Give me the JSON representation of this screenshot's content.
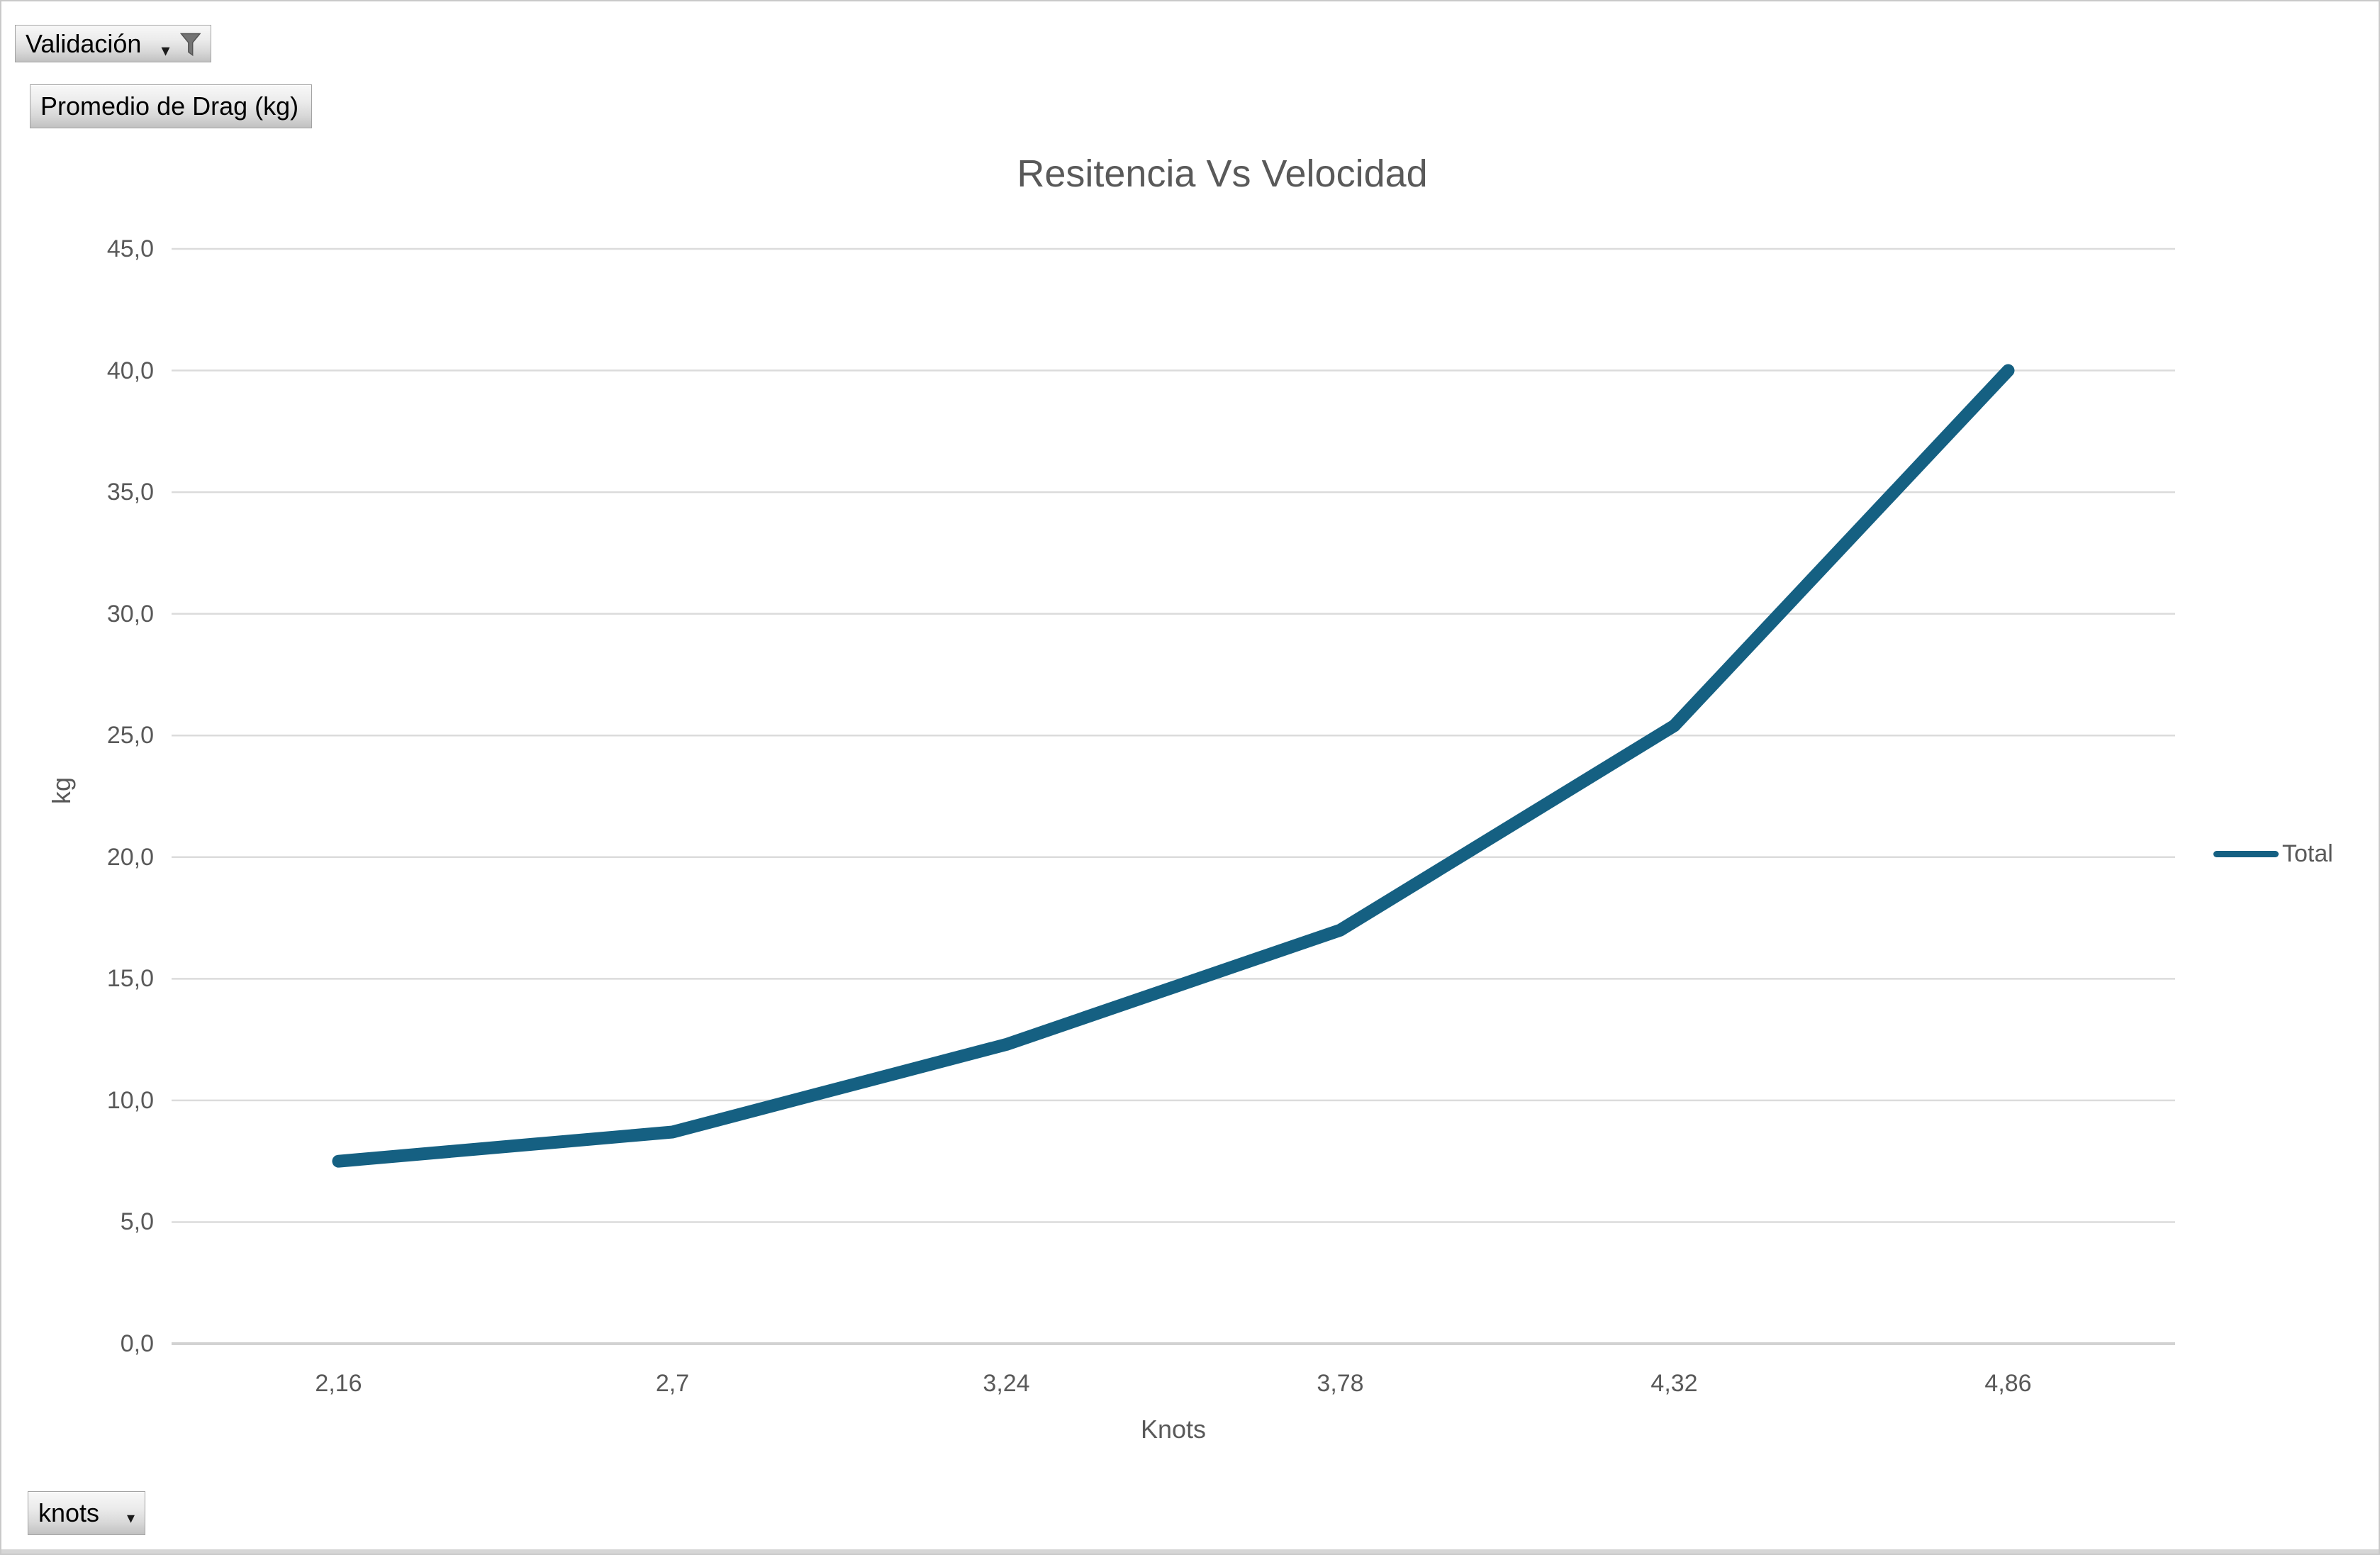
{
  "frame": {
    "background": "#FFFFFF",
    "border_color": "#C9C9C9",
    "bottom_strip_color": "#D6D6D6"
  },
  "pivot_buttons": {
    "validacion": {
      "label": "Validación",
      "dropdown_glyph": "▾",
      "icon": "filter-funnel-icon"
    },
    "promedio": {
      "label": "Promedio de Drag (kg)"
    },
    "knots": {
      "label": "knots",
      "dropdown_glyph": "▾"
    }
  },
  "chart_data": {
    "type": "line",
    "title": "Resitencia Vs Velocidad",
    "categories": [
      "2,16",
      "2,7",
      "3,24",
      "3,78",
      "4,32",
      "4,86"
    ],
    "series": [
      {
        "name": "Total",
        "values": [
          7.5,
          8.7,
          12.3,
          17.0,
          25.4,
          40.0
        ],
        "color": "#156082"
      }
    ],
    "xlabel": "Knots",
    "ylabel": "kg",
    "ylim": [
      0,
      45
    ],
    "y_tick_step": 5,
    "y_tick_labels": [
      "0,0",
      "5,0",
      "10,0",
      "15,0",
      "20,0",
      "25,0",
      "30,0",
      "35,0",
      "40,0",
      "45,0"
    ],
    "grid": true,
    "legend_position": "right",
    "text_color": "#595959",
    "gridline_color": "#DBDBDB",
    "axis_line_color": "#D2D2D2"
  }
}
